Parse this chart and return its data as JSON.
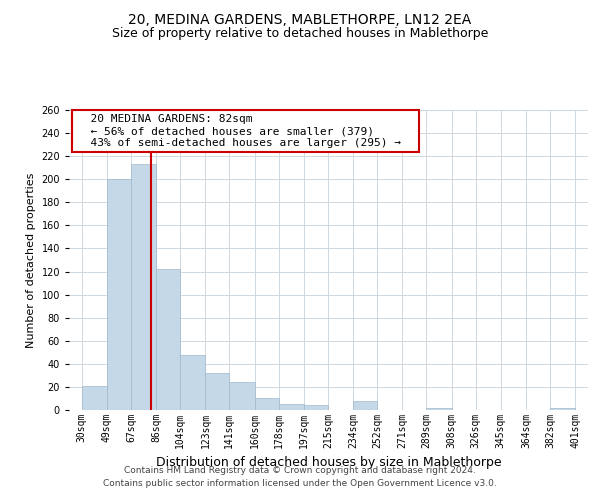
{
  "title": "20, MEDINA GARDENS, MABLETHORPE, LN12 2EA",
  "subtitle": "Size of property relative to detached houses in Mablethorpe",
  "xlabel": "Distribution of detached houses by size in Mablethorpe",
  "ylabel": "Number of detached properties",
  "footer_line1": "Contains HM Land Registry data © Crown copyright and database right 2024.",
  "footer_line2": "Contains public sector information licensed under the Open Government Licence v3.0.",
  "annotation_line1": "20 MEDINA GARDENS: 82sqm",
  "annotation_line2": "← 56% of detached houses are smaller (379)",
  "annotation_line3": "43% of semi-detached houses are larger (295) →",
  "bin_labels": [
    "30sqm",
    "49sqm",
    "67sqm",
    "86sqm",
    "104sqm",
    "123sqm",
    "141sqm",
    "160sqm",
    "178sqm",
    "197sqm",
    "215sqm",
    "234sqm",
    "252sqm",
    "271sqm",
    "289sqm",
    "308sqm",
    "326sqm",
    "345sqm",
    "364sqm",
    "382sqm",
    "401sqm"
  ],
  "bar_values": [
    21,
    200,
    213,
    122,
    48,
    32,
    24,
    10,
    5,
    4,
    0,
    8,
    0,
    0,
    2,
    0,
    0,
    0,
    0,
    2
  ],
  "bar_color": "#c5d8e8",
  "bar_edge_color": "#a0b8cc",
  "vline_x": 82,
  "bin_edges": [
    30,
    49,
    67,
    86,
    104,
    123,
    141,
    160,
    178,
    197,
    215,
    234,
    252,
    271,
    289,
    308,
    326,
    345,
    364,
    382,
    401
  ],
  "ylim": [
    0,
    260
  ],
  "yticks": [
    0,
    20,
    40,
    60,
    80,
    100,
    120,
    140,
    160,
    180,
    200,
    220,
    240,
    260
  ],
  "annotation_box_edgecolor": "#cc0000",
  "vline_color": "#cc0000",
  "background_color": "#ffffff",
  "grid_color": "#d0d8e0",
  "title_fontsize": 10,
  "subtitle_fontsize": 9,
  "ylabel_fontsize": 8,
  "xlabel_fontsize": 9,
  "annotation_fontsize": 8,
  "footer_fontsize": 6.5,
  "tick_fontsize": 7
}
